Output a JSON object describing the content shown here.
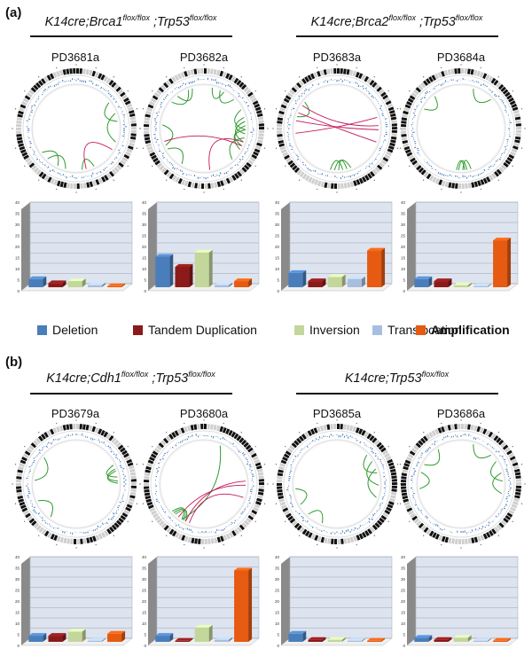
{
  "panels": [
    {
      "label": "(a)",
      "groups": [
        {
          "genotype": [
            {
              "t": "K14cre;Brca1"
            },
            {
              "t": "flox/flox",
              "sup": true
            },
            {
              "t": " ;Trp53"
            },
            {
              "t": "flox/flox",
              "sup": true
            }
          ]
        },
        {
          "genotype": [
            {
              "t": "K14cre;Brca2"
            },
            {
              "t": "flox/flox",
              "sup": true
            },
            {
              "t": " ;Trp53"
            },
            {
              "t": "flox/flox",
              "sup": true
            }
          ]
        }
      ],
      "samples": [
        "PD3681a",
        "PD3682a",
        "PD3683a",
        "PD3684a"
      ]
    },
    {
      "label": "(b)",
      "groups": [
        {
          "genotype": [
            {
              "t": "K14cre;Cdh1"
            },
            {
              "t": "flox/flox",
              "sup": true
            },
            {
              "t": " ;Trp53"
            },
            {
              "t": "flox/flox",
              "sup": true
            }
          ]
        },
        {
          "genotype": [
            {
              "t": "K14cre;Trp53"
            },
            {
              "t": "flox/flox",
              "sup": true
            }
          ]
        }
      ],
      "samples": [
        "PD3679a",
        "PD3680a",
        "PD3685a",
        "PD3686a"
      ]
    }
  ],
  "legend": [
    {
      "name": "Deletion",
      "color": "#4a7ebb",
      "bold": false
    },
    {
      "name": "Tandem Duplication",
      "color": "#8b1a1a",
      "bold": false
    },
    {
      "name": "Inversion",
      "color": "#c3d69b",
      "bold": false
    },
    {
      "name": "Translocation",
      "color": "#a8bede",
      "bold": false
    },
    {
      "name": "Amplification",
      "color": "#e65a12",
      "bold": true
    }
  ],
  "chart_data": [
    {
      "type": "bar",
      "sample": "PD3681a",
      "categories": [
        "Deletion",
        "Tandem Duplication",
        "Inversion",
        "Translocation",
        "Amplification"
      ],
      "values": [
        4,
        2,
        3,
        1,
        0
      ],
      "ylim": [
        0,
        40
      ],
      "yticks": [
        0,
        5,
        10,
        15,
        20,
        25,
        30,
        35,
        40
      ]
    },
    {
      "type": "bar",
      "sample": "PD3682a",
      "categories": [
        "Deletion",
        "Tandem Duplication",
        "Inversion",
        "Translocation",
        "Amplification"
      ],
      "values": [
        15,
        10,
        17,
        1,
        3
      ],
      "ylim": [
        0,
        40
      ],
      "yticks": [
        0,
        5,
        10,
        15,
        20,
        25,
        30,
        35,
        40
      ]
    },
    {
      "type": "bar",
      "sample": "PD3683a",
      "categories": [
        "Deletion",
        "Tandem Duplication",
        "Inversion",
        "Translocation",
        "Amplification"
      ],
      "values": [
        7,
        3,
        5,
        4,
        18
      ],
      "ylim": [
        0,
        40
      ],
      "yticks": [
        0,
        5,
        10,
        15,
        20,
        25,
        30,
        35,
        40
      ]
    },
    {
      "type": "bar",
      "sample": "PD3684a",
      "categories": [
        "Deletion",
        "Tandem Duplication",
        "Inversion",
        "Translocation",
        "Amplification"
      ],
      "values": [
        4,
        3,
        1,
        0,
        23
      ],
      "ylim": [
        0,
        40
      ],
      "yticks": [
        0,
        5,
        10,
        15,
        20,
        25,
        30,
        35,
        40
      ]
    },
    {
      "type": "bar",
      "sample": "PD3679a",
      "categories": [
        "Deletion",
        "Tandem Duplication",
        "Inversion",
        "Translocation",
        "Amplification"
      ],
      "values": [
        3,
        3,
        5,
        0,
        4
      ],
      "ylim": [
        0,
        40
      ],
      "yticks": [
        0,
        5,
        10,
        15,
        20,
        25,
        30,
        35,
        40
      ]
    },
    {
      "type": "bar",
      "sample": "PD3680a",
      "categories": [
        "Deletion",
        "Tandem Duplication",
        "Inversion",
        "Translocation",
        "Amplification"
      ],
      "values": [
        3,
        0,
        7,
        1,
        35
      ],
      "ylim": [
        0,
        40
      ],
      "yticks": [
        0,
        5,
        10,
        15,
        20,
        25,
        30,
        35,
        40
      ]
    },
    {
      "type": "bar",
      "sample": "PD3685a",
      "categories": [
        "Deletion",
        "Tandem Duplication",
        "Inversion",
        "Translocation",
        "Amplification"
      ],
      "values": [
        4,
        1,
        1,
        0,
        0
      ],
      "ylim": [
        0,
        40
      ],
      "yticks": [
        0,
        5,
        10,
        15,
        20,
        25,
        30,
        35,
        40
      ]
    },
    {
      "type": "bar",
      "sample": "PD3686a",
      "categories": [
        "Deletion",
        "Tandem Duplication",
        "Inversion",
        "Translocation",
        "Amplification"
      ],
      "values": [
        2,
        1,
        2,
        0,
        0
      ],
      "ylim": [
        0,
        40
      ],
      "yticks": [
        0,
        5,
        10,
        15,
        20,
        25,
        30,
        35,
        40
      ]
    }
  ],
  "circos": [
    {
      "sample": "PD3681a",
      "inversions": [
        [
          1.2,
          1.9
        ],
        [
          2.7,
          3.0
        ],
        [
          3.4,
          3.9
        ],
        [
          3.6,
          4.1
        ],
        [
          0.9,
          1.4
        ]
      ],
      "translocations": [
        [
          2.1,
          2.9
        ]
      ]
    },
    {
      "sample": "PD3682a",
      "inversions": [
        [
          0.2,
          0.5
        ],
        [
          0.4,
          0.8
        ],
        [
          1.1,
          1.6
        ],
        [
          1.3,
          1.7
        ],
        [
          1.4,
          1.9
        ],
        [
          1.5,
          2.1
        ],
        [
          1.6,
          2.0
        ],
        [
          1.8,
          2.4
        ],
        [
          3.7,
          4.2
        ],
        [
          4.3,
          4.8
        ],
        [
          5.4,
          5.9
        ],
        [
          5.6,
          6.0
        ]
      ],
      "translocations": [
        [
          2.0,
          4.4
        ],
        [
          1.9,
          3.0
        ]
      ]
    },
    {
      "sample": "PD3683a",
      "inversions": [
        [
          2.8,
          3.2
        ],
        [
          2.9,
          3.1
        ],
        [
          3.0,
          3.3
        ],
        [
          5.0,
          5.4
        ]
      ],
      "translocations": [
        [
          4.9,
          1.6
        ],
        [
          5.1,
          1.9
        ],
        [
          5.3,
          1.5
        ],
        [
          4.6,
          1.3
        ]
      ]
    },
    {
      "sample": "PD3684a",
      "inversions": [
        [
          2.9,
          3.1
        ],
        [
          3.0,
          3.2
        ],
        [
          3.05,
          3.25
        ],
        [
          0.3,
          0.8
        ],
        [
          5.2,
          5.6
        ]
      ],
      "translocations": []
    },
    {
      "sample": "PD3679a",
      "inversions": [
        [
          4.8,
          5.4
        ],
        [
          1.1,
          1.4
        ],
        [
          1.2,
          1.5
        ],
        [
          1.25,
          1.55
        ],
        [
          3.8,
          4.3
        ]
      ],
      "translocations": []
    },
    {
      "sample": "PD3680a",
      "inversions": [
        [
          0.4,
          3.7
        ],
        [
          3.6,
          3.9
        ],
        [
          3.65,
          3.95
        ],
        [
          3.7,
          4.0
        ]
      ],
      "translocations": [
        [
          1.9,
          3.5
        ],
        [
          1.6,
          3.8
        ],
        [
          1.5,
          3.6
        ]
      ]
    },
    {
      "sample": "PD3685a",
      "inversions": [
        [
          0.8,
          1.3
        ],
        [
          1.0,
          1.6
        ],
        [
          1.2,
          1.9
        ],
        [
          4.2,
          4.6
        ],
        [
          3.5,
          3.9
        ]
      ],
      "translocations": []
    },
    {
      "sample": "PD3686a",
      "inversions": [
        [
          0.3,
          0.8
        ],
        [
          1.0,
          1.5
        ],
        [
          1.3,
          1.8
        ],
        [
          4.6,
          5.0
        ],
        [
          5.2,
          5.7
        ]
      ],
      "translocations": []
    }
  ]
}
